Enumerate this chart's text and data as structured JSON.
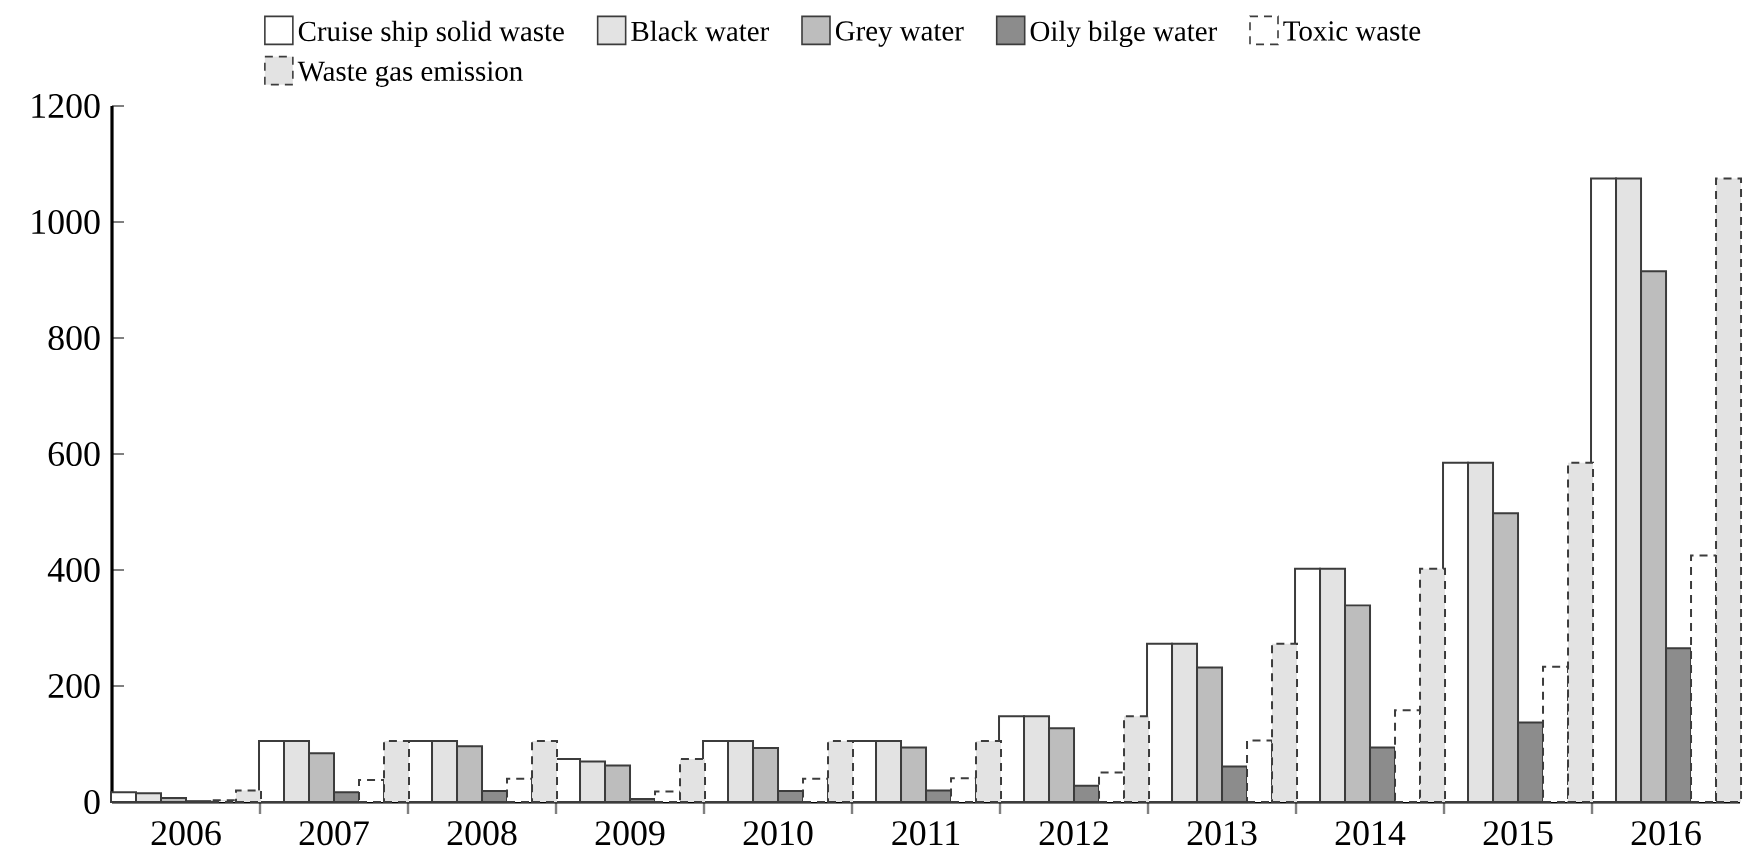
{
  "chart_data": {
    "type": "bar",
    "categories": [
      "2006",
      "2007",
      "2008",
      "2009",
      "2010",
      "2011",
      "2012",
      "2013",
      "2014",
      "2015",
      "2016"
    ],
    "series": [
      {
        "name": "Cruise ship solid waste",
        "color": "#ffffff",
        "values": [
          17,
          105,
          105,
          74,
          105,
          105,
          148,
          273,
          402,
          585,
          1075
        ]
      },
      {
        "name": "Black water",
        "color": "#e3e3e3",
        "values": [
          15,
          105,
          105,
          70,
          105,
          105,
          148,
          273,
          402,
          585,
          1075
        ]
      },
      {
        "name": "Grey water",
        "color": "#bdbdbd",
        "values": [
          7,
          84,
          96,
          63,
          93,
          94,
          127,
          232,
          339,
          498,
          915
        ]
      },
      {
        "name": "Oily bilge water",
        "color": "#8c8c8c",
        "values": [
          1,
          17,
          19,
          5,
          19,
          20,
          28,
          61,
          94,
          137,
          265
        ]
      },
      {
        "name": "Toxic waste",
        "color": "#ffffff",
        "line_style": "dashed",
        "values": [
          3,
          38,
          40,
          18,
          40,
          41,
          51,
          106,
          158,
          233,
          425
        ]
      },
      {
        "name": "Waste gas emission",
        "color": "#e3e3e3",
        "line_style": "dashed",
        "values": [
          20,
          105,
          105,
          74,
          105,
          105,
          148,
          273,
          402,
          585,
          1075
        ]
      }
    ],
    "ylim": [
      0,
      1200
    ],
    "yticks": [
      0,
      200,
      400,
      600,
      800,
      1000,
      1200
    ],
    "grid": false,
    "legend": "top"
  }
}
